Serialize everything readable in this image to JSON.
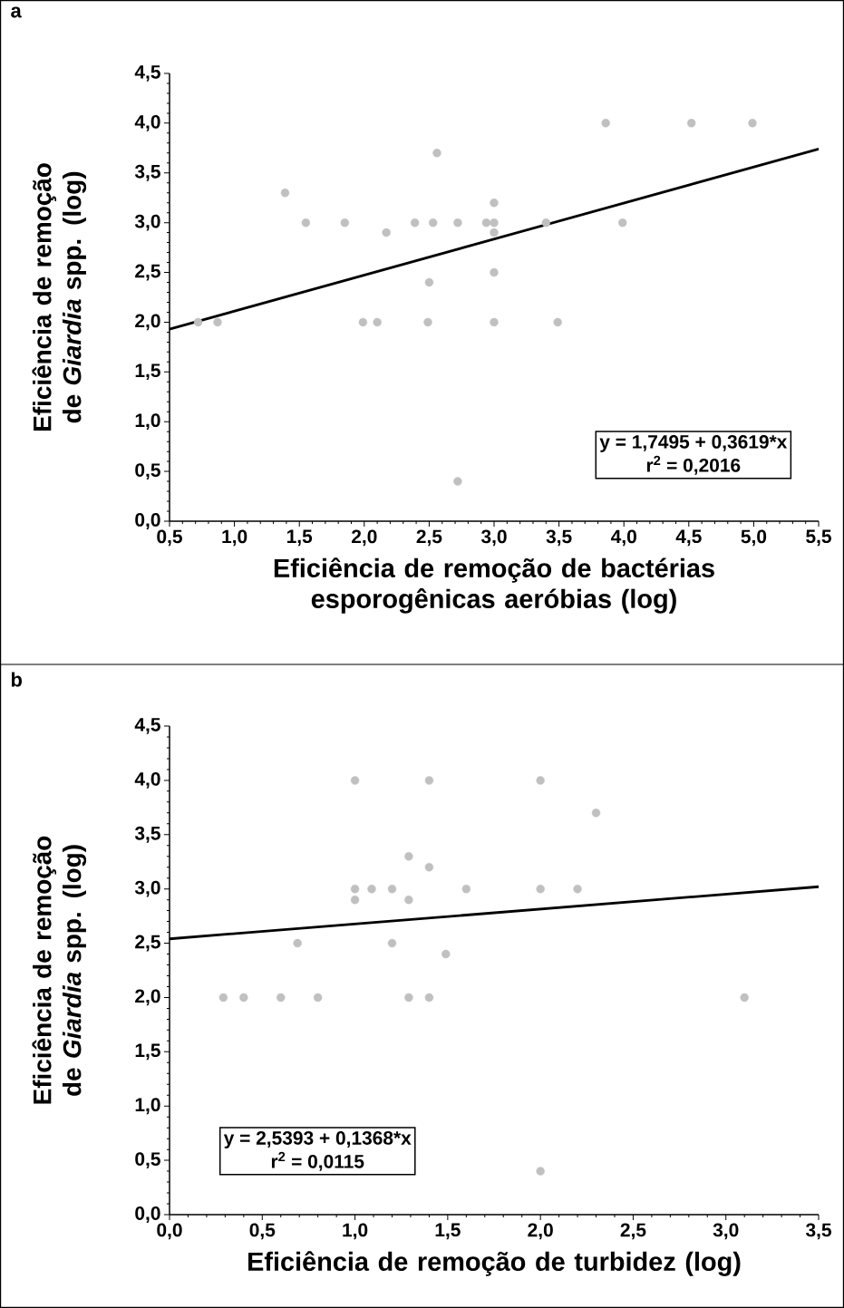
{
  "chart_data": [
    {
      "type": "scatter",
      "title": "a",
      "xlabel": "Eficiência de remoção de bactérias esporogênicas aeróbias (log)",
      "ylabel": "Eficiência de remoção de *Giardia* spp. (log)",
      "annotations": [
        "y = 1,7495 + 0,3619*x",
        "r$^{2}$ = 0,2016"
      ],
      "xlim": [
        0.5,
        5.5
      ],
      "ylim": [
        0,
        4.5
      ],
      "xticks": [
        {
          "value": 0.5,
          "label": "0,5"
        },
        {
          "value": 1.0,
          "label": "1,0"
        },
        {
          "value": 1.5,
          "label": "1,5"
        },
        {
          "value": 2.0,
          "label": "2,0"
        },
        {
          "value": 2.5,
          "label": "2,5"
        },
        {
          "value": 3.0,
          "label": "3,0"
        },
        {
          "value": 3.5,
          "label": "3,5"
        },
        {
          "value": 4.0,
          "label": "4,0"
        },
        {
          "value": 4.5,
          "label": "4,5"
        },
        {
          "value": 5.0,
          "label": "5,0"
        },
        {
          "value": 5.5,
          "label": "5,5"
        }
      ],
      "yticks": [
        {
          "value": 0,
          "label": "0,0"
        },
        {
          "value": 0.5,
          "label": "0,5"
        },
        {
          "value": 1.0,
          "label": "1,0"
        },
        {
          "value": 1.5,
          "label": "1,5"
        },
        {
          "value": 2.0,
          "label": "2,0"
        },
        {
          "value": 2.5,
          "label": "2,5"
        },
        {
          "value": 3.0,
          "label": "3,0"
        },
        {
          "value": 3.5,
          "label": "3,5"
        },
        {
          "value": 4.0,
          "label": "4,0"
        },
        {
          "value": 4.5,
          "label": "4,5"
        }
      ],
      "series": [
        {
          "marker": "circle",
          "color": "#c0c0c0",
          "x": [
            0.72,
            0.87,
            1.39,
            1.55,
            1.85,
            1.99,
            2.1,
            2.17,
            2.39,
            2.5,
            2.49,
            2.53,
            2.56,
            2.72,
            2.94,
            3.0,
            3.0,
            3.0,
            3.0,
            3.0,
            3.4,
            3.49,
            3.86,
            3.99,
            4.52,
            4.99,
            2.72
          ],
          "values": [
            2.0,
            2.0,
            3.3,
            3.0,
            3.0,
            2.0,
            2.0,
            2.9,
            3.0,
            2.4,
            2.0,
            3.0,
            3.7,
            3.0,
            3.0,
            3.0,
            3.2,
            2.9,
            2.5,
            2.0,
            3.0,
            2.0,
            4.0,
            3.0,
            4.0,
            4.0,
            0.4
          ]
        },
        {
          "type": "line",
          "marker": "none",
          "color": "#000000",
          "x": [
            0.5,
            5.5
          ],
          "values": [
            1.93,
            3.74
          ]
        }
      ]
    },
    {
      "type": "scatter",
      "title": "b",
      "xlabel": "Eficiência de remoção de turbidez (log)",
      "ylabel": "Eficiência de remoção de *Giardia* spp. (log)",
      "annotations": [
        "y = 2,5393 + 0,1368*x",
        "r$^{2}$ = 0,0115"
      ],
      "xlim": [
        0,
        3.5
      ],
      "ylim": [
        0,
        4.5
      ],
      "xticks": [
        {
          "value": 0,
          "label": "0,0"
        },
        {
          "value": 0.5,
          "label": "0,5"
        },
        {
          "value": 1.0,
          "label": "1,0"
        },
        {
          "value": 1.5,
          "label": "1,5"
        },
        {
          "value": 2.0,
          "label": "2,0"
        },
        {
          "value": 2.5,
          "label": "2,5"
        },
        {
          "value": 3.0,
          "label": "3,0"
        },
        {
          "value": 3.5,
          "label": "3,5"
        }
      ],
      "yticks": [
        {
          "value": 0,
          "label": "0,0"
        },
        {
          "value": 0.5,
          "label": "0,5"
        },
        {
          "value": 1.0,
          "label": "1,0"
        },
        {
          "value": 1.5,
          "label": "1,5"
        },
        {
          "value": 2.0,
          "label": "2,0"
        },
        {
          "value": 2.5,
          "label": "2,5"
        },
        {
          "value": 3.0,
          "label": "3,0"
        },
        {
          "value": 3.5,
          "label": "3,5"
        },
        {
          "value": 4.0,
          "label": "4,0"
        },
        {
          "value": 4.5,
          "label": "4,5"
        }
      ],
      "series": [
        {
          "marker": "circle",
          "color": "#c0c0c0",
          "x": [
            0.29,
            0.4,
            0.6,
            0.8,
            0.69,
            1.0,
            1.0,
            1.0,
            1.09,
            1.2,
            1.2,
            1.29,
            1.29,
            1.29,
            1.4,
            1.4,
            1.4,
            1.49,
            1.6,
            2.0,
            2.0,
            2.2,
            2.3,
            3.1,
            2.0
          ],
          "values": [
            2.0,
            2.0,
            2.0,
            2.0,
            2.5,
            4.0,
            3.0,
            2.9,
            3.0,
            3.0,
            2.5,
            3.3,
            2.9,
            2.0,
            4.0,
            3.2,
            2.0,
            2.4,
            3.0,
            4.0,
            3.0,
            3.0,
            3.7,
            2.0,
            0.4
          ]
        },
        {
          "type": "line",
          "marker": "none",
          "color": "#000000",
          "x": [
            0,
            3.5
          ],
          "values": [
            2.54,
            3.02
          ]
        }
      ]
    }
  ]
}
